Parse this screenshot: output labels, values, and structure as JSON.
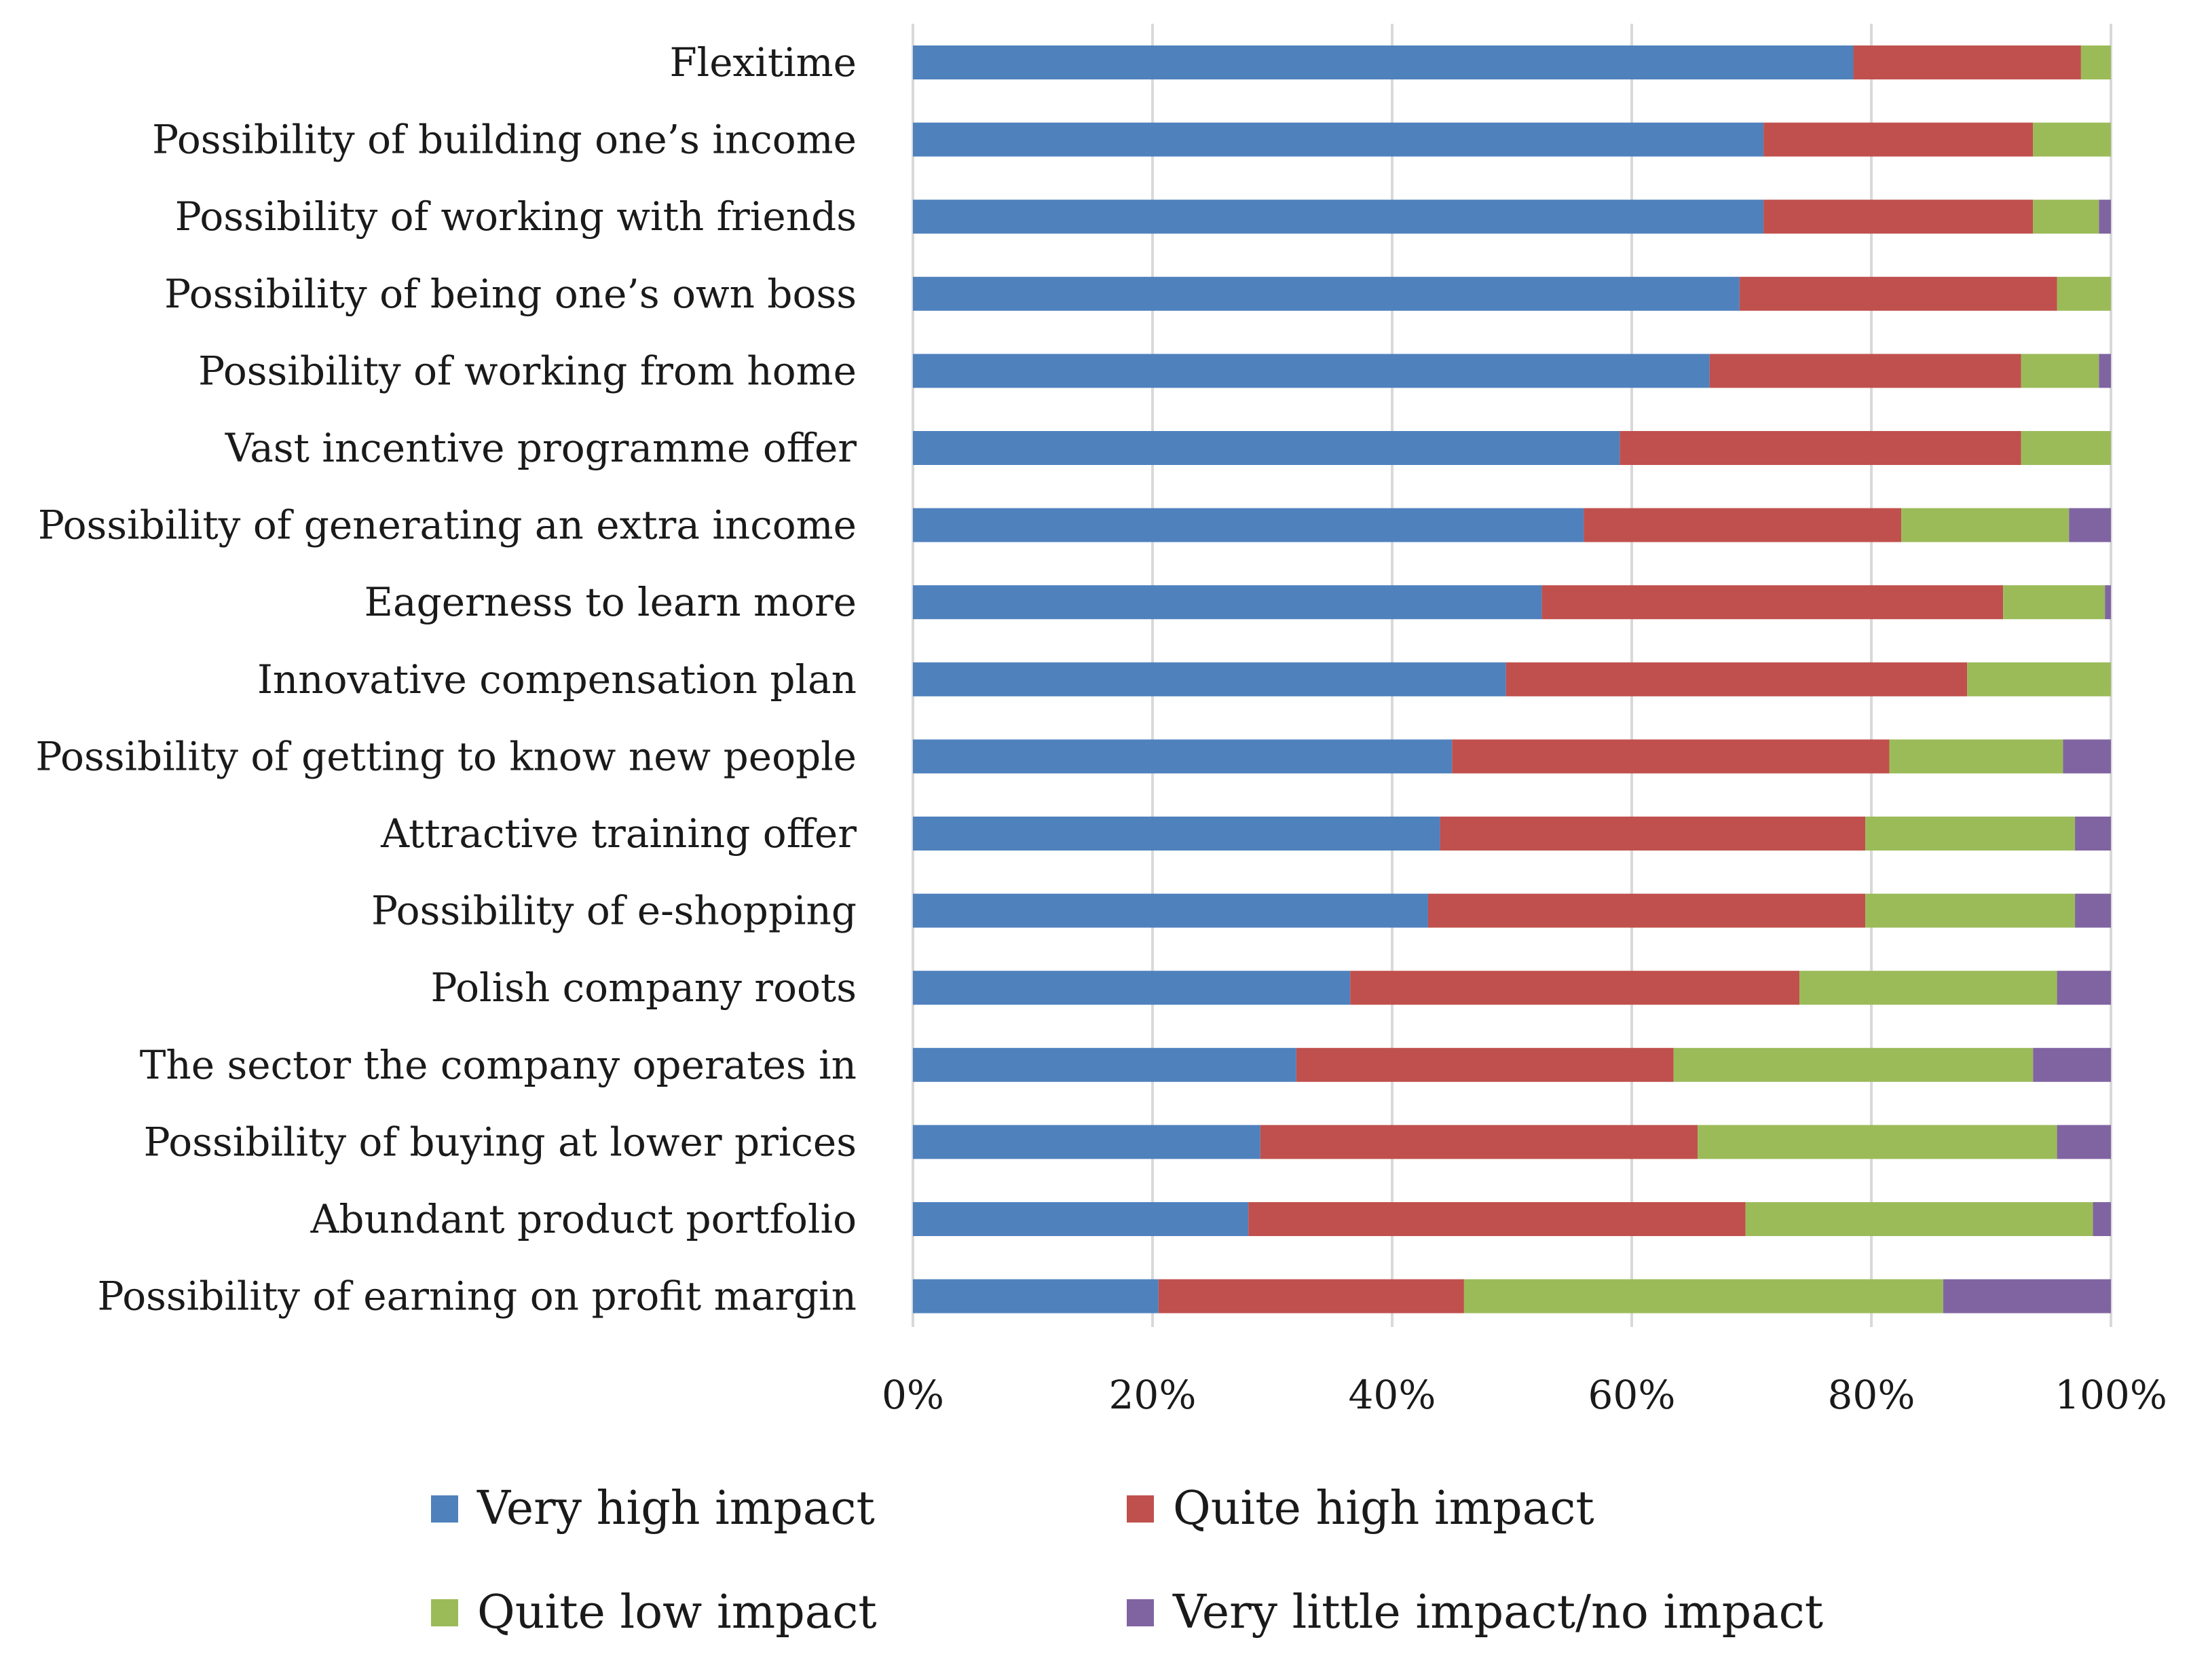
{
  "chart_data": {
    "type": "bar",
    "orientation": "horizontal",
    "stacked": "percent",
    "title": "",
    "xlabel": "",
    "ylabel": "",
    "xlim": [
      0,
      100
    ],
    "grid": true,
    "legend_position": "bottom",
    "x_ticks": [
      "0%",
      "20%",
      "40%",
      "60%",
      "80%",
      "100%"
    ],
    "categories": [
      "Flexitime",
      "Possibility of building one’s income",
      "Possibility of working with friends",
      "Possibility of being one’s own boss",
      "Possibility of working from home",
      "Vast incentive programme offer",
      "Possibility of generating an extra income",
      "Eagerness to learn more",
      "Innovative compensation plan",
      "Possibility of getting to know new people",
      "Attractive training offer",
      "Possibility of e-shopping",
      "Polish company roots",
      "The sector the company operates in",
      "Possibility of buying at lower prices",
      "Abundant product portfolio",
      "Possibility of earning on profit margin"
    ],
    "series": [
      {
        "name": "Very high impact",
        "color": "#4F81BD",
        "values": [
          78.5,
          71,
          71,
          69,
          66.5,
          59,
          56,
          52.5,
          49.5,
          45,
          44,
          43,
          36.5,
          32,
          29,
          28,
          20.5
        ]
      },
      {
        "name": "Quite high impact",
        "color": "#C0504D",
        "values": [
          19,
          22.5,
          22.5,
          26.5,
          26,
          33.5,
          26.5,
          38.5,
          38.5,
          36.5,
          35.5,
          36.5,
          37.5,
          31.5,
          36.5,
          41.5,
          25.5
        ]
      },
      {
        "name": "Quite low impact",
        "color": "#9BBB59",
        "values": [
          2.5,
          6.5,
          5.5,
          4.5,
          6.5,
          7.5,
          14,
          8.5,
          12,
          14.5,
          17.5,
          17.5,
          21.5,
          30,
          30,
          29,
          40
        ]
      },
      {
        "name": "Very little impact/no impact",
        "color": "#8064A2",
        "values": [
          0,
          0,
          1,
          0,
          1,
          0,
          3.5,
          0.5,
          0,
          4,
          3,
          3,
          4.5,
          6.5,
          4.5,
          1.5,
          14
        ]
      }
    ]
  }
}
